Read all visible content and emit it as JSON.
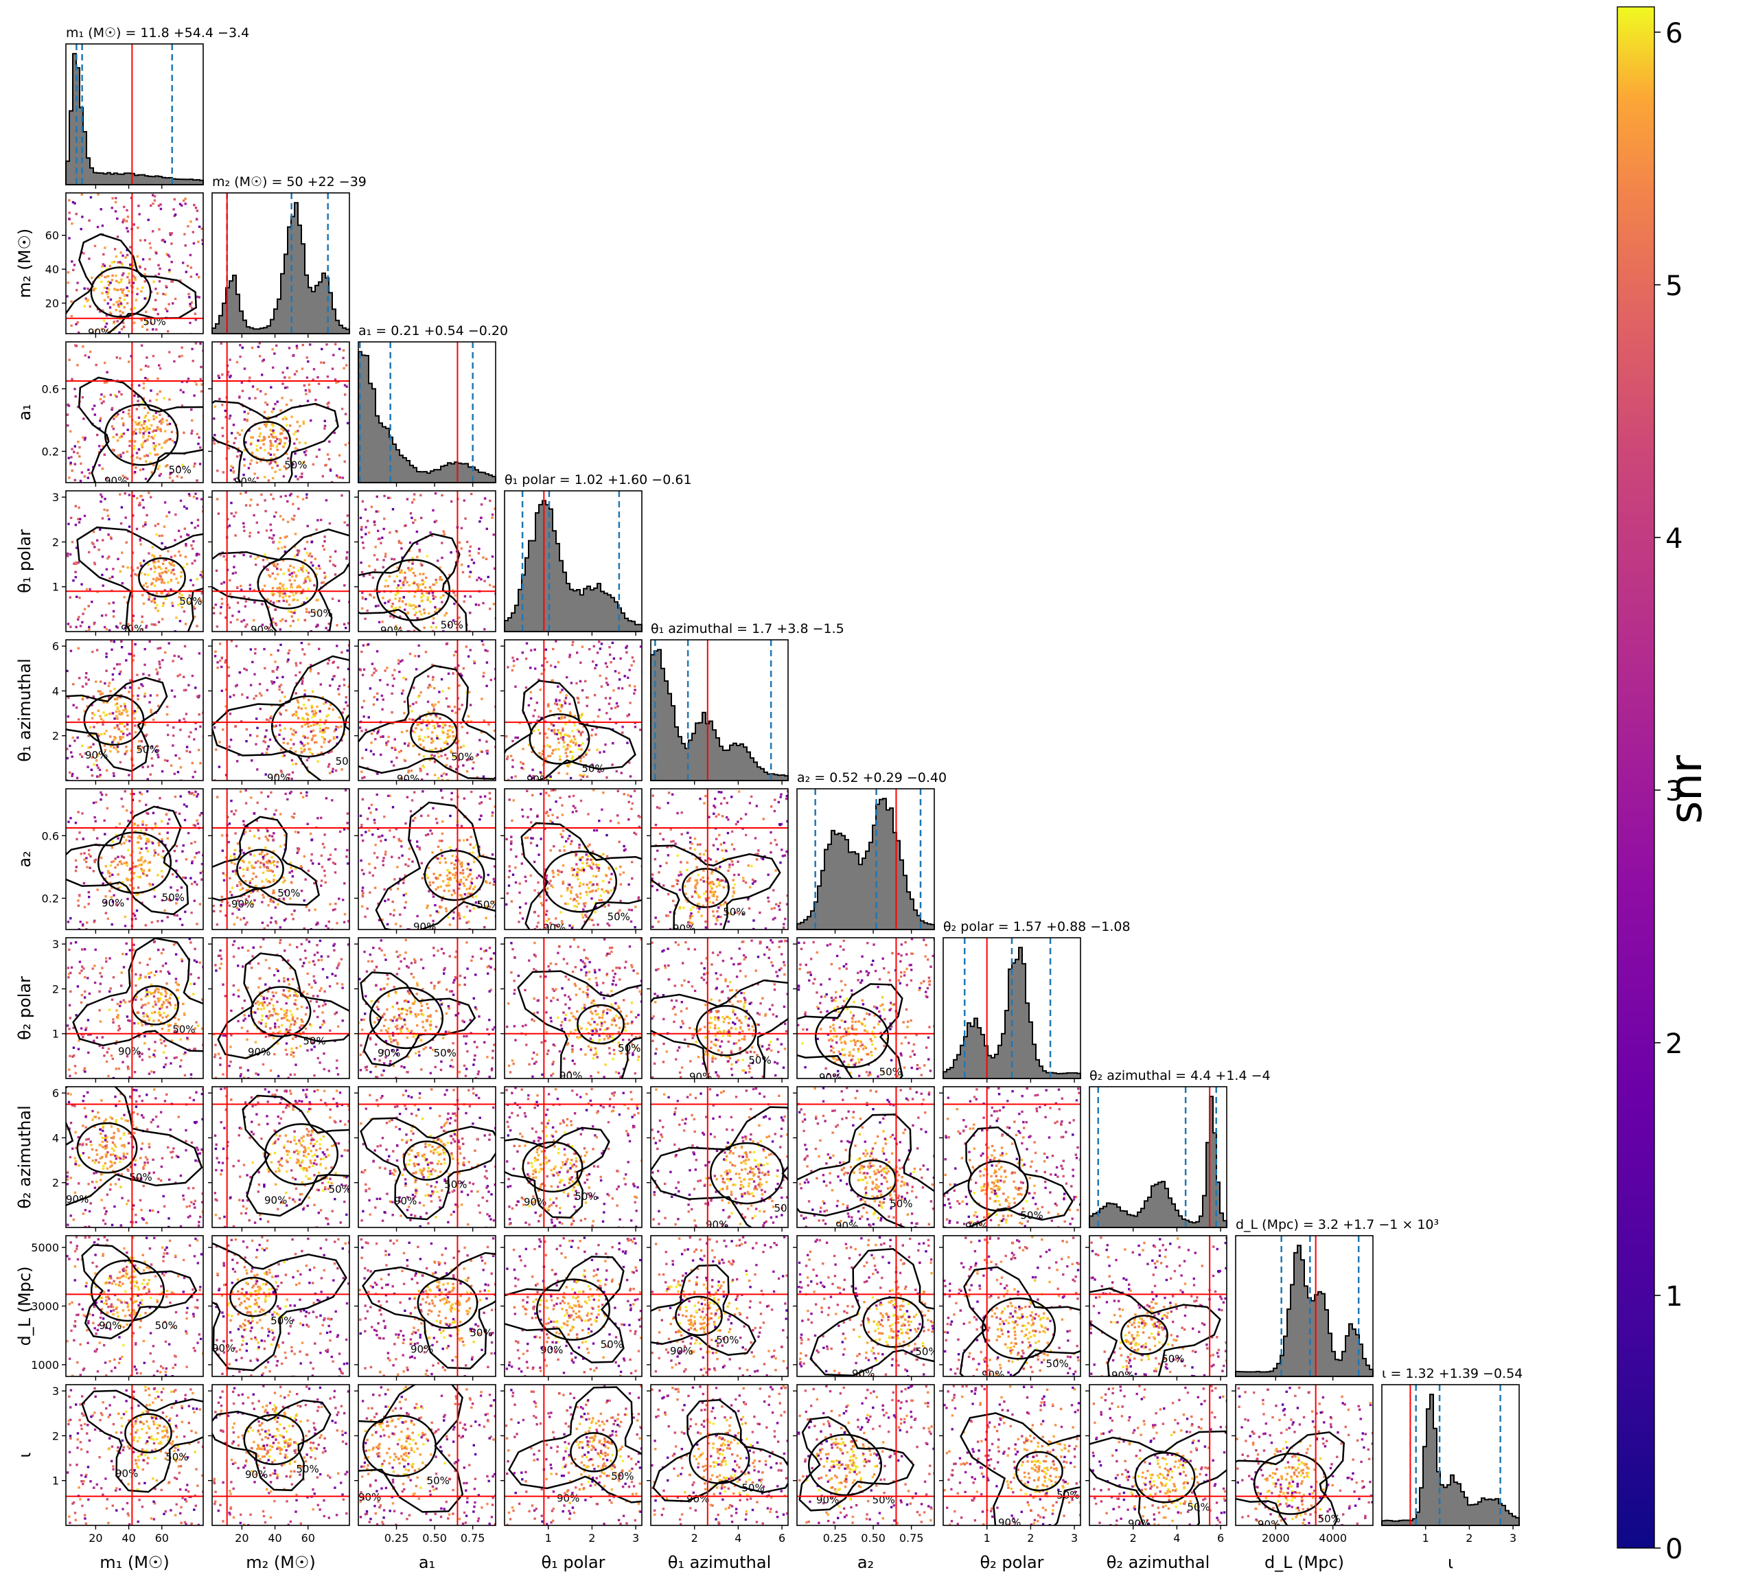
{
  "chart_data": {
    "type": "scatter",
    "subtype": "corner plot",
    "parameters": [
      {
        "key": "m1",
        "axis_label": "m₁ (M☉)",
        "title": "m₁ (M☉) = 11.8 +54.4 −3.4",
        "median": 11.8,
        "plus": 54.4,
        "minus": 3.4,
        "range": [
          2,
          85
        ],
        "ticks": [
          20,
          40,
          60
        ],
        "tick_labels": [
          "20",
          "40",
          "60"
        ],
        "truth": 42,
        "hist_peaks": [
          [
            7,
            1.0,
            2
          ],
          [
            11,
            0.6,
            3
          ],
          [
            30,
            0.08,
            25
          ]
        ]
      },
      {
        "key": "m2",
        "axis_label": "m₂ (M☉)",
        "title": "m₂ (M☉) = 50 +22 −39",
        "median": 50,
        "plus": 22,
        "minus": 39,
        "range": [
          2,
          85
        ],
        "ticks": [
          20,
          40,
          60
        ],
        "tick_labels": [
          "20",
          "40",
          "60"
        ],
        "truth": 11,
        "hist_peaks": [
          [
            14,
            0.45,
            4
          ],
          [
            52,
            1.0,
            6
          ],
          [
            70,
            0.5,
            4
          ]
        ]
      },
      {
        "key": "a1",
        "axis_label": "a₁",
        "title": "a₁ = 0.21 +0.54 −0.20",
        "median": 0.21,
        "plus": 0.54,
        "minus": 0.2,
        "range": [
          0,
          0.9
        ],
        "ticks": [
          0.25,
          0.5,
          0.75
        ],
        "tick_labels": [
          "0.25",
          "0.50",
          "0.75"
        ],
        "truth": 0.65,
        "hist_peaks": [
          [
            0.02,
            1.0,
            0.06
          ],
          [
            0.15,
            0.45,
            0.12
          ],
          [
            0.65,
            0.15,
            0.12
          ]
        ]
      },
      {
        "key": "th1p",
        "axis_label": "θ₁ polar",
        "title": "θ₁ polar = 1.02 +1.60 −0.61",
        "median": 1.02,
        "plus": 1.6,
        "minus": 0.61,
        "range": [
          0,
          3.14
        ],
        "ticks": [
          1,
          2,
          3
        ],
        "tick_labels": [
          "1",
          "2",
          "3"
        ],
        "truth": 0.9,
        "hist_peaks": [
          [
            0.9,
            1.0,
            0.35
          ],
          [
            2.1,
            0.35,
            0.4
          ]
        ]
      },
      {
        "key": "th1a",
        "axis_label": "θ₁ azimuthal",
        "title": "θ₁ azimuthal = 1.7 +3.8 −1.5",
        "median": 1.7,
        "plus": 3.8,
        "minus": 1.5,
        "range": [
          0,
          6.28
        ],
        "ticks": [
          2,
          4,
          6
        ],
        "tick_labels": [
          "2",
          "4",
          "6"
        ],
        "truth": 2.6,
        "hist_peaks": [
          [
            0.3,
            1.0,
            0.6
          ],
          [
            2.4,
            0.45,
            0.5
          ],
          [
            4,
            0.25,
            0.6
          ]
        ]
      },
      {
        "key": "a2",
        "axis_label": "a₂",
        "title": "a₂ = 0.52 +0.29 −0.40",
        "median": 0.52,
        "plus": 0.29,
        "minus": 0.4,
        "range": [
          0,
          0.9
        ],
        "ticks": [
          0.25,
          0.5,
          0.75
        ],
        "tick_labels": [
          "0.25",
          "0.50",
          "0.75"
        ],
        "truth": 0.65,
        "hist_peaks": [
          [
            0.25,
            0.85,
            0.08
          ],
          [
            0.6,
            1.0,
            0.09
          ],
          [
            0.45,
            0.45,
            0.1
          ]
        ]
      },
      {
        "key": "th2p",
        "axis_label": "θ₂ polar",
        "title": "θ₂ polar = 1.57 +0.88 −1.08",
        "median": 1.57,
        "plus": 0.88,
        "minus": 1.08,
        "range": [
          0,
          3.14
        ],
        "ticks": [
          1,
          2,
          3
        ],
        "tick_labels": [
          "1",
          "2",
          "3"
        ],
        "truth": 1.0,
        "hist_peaks": [
          [
            0.7,
            0.4,
            0.25
          ],
          [
            1.7,
            1.0,
            0.22
          ]
        ]
      },
      {
        "key": "th2a",
        "axis_label": "θ₂ azimuthal",
        "title": "θ₂ azimuthal = 4.4 +1.4 −4",
        "median": 4.4,
        "plus": 1.4,
        "minus": 4,
        "range": [
          0,
          6.28
        ],
        "ticks": [
          2,
          4,
          6
        ],
        "tick_labels": [
          "2",
          "4",
          "6"
        ],
        "truth": 5.5,
        "hist_peaks": [
          [
            5.6,
            1.0,
            0.2
          ],
          [
            3.2,
            0.35,
            0.5
          ],
          [
            1,
            0.15,
            0.6
          ]
        ]
      },
      {
        "key": "dl",
        "axis_label": "d_L (Mpc)",
        "title": "d_L (Mpc) = 3.2 +1.7 −1 × 10³",
        "median": 3200,
        "plus": 1700,
        "minus": 1000,
        "range": [
          600,
          5400
        ],
        "ticks": [
          2000,
          4000
        ],
        "tick_labels": [
          "2000",
          "4000"
        ],
        "truth": 3400,
        "hist_peaks": [
          [
            2800,
            1.0,
            300
          ],
          [
            3600,
            0.7,
            250
          ],
          [
            4700,
            0.4,
            250
          ]
        ]
      },
      {
        "key": "iota",
        "axis_label": "ι",
        "title": "ι = 1.32 +1.39 −0.54",
        "median": 1.32,
        "plus": 1.39,
        "minus": 0.54,
        "range": [
          0,
          3.14
        ],
        "ticks": [
          1,
          2,
          3
        ],
        "tick_labels": [
          "1",
          "2",
          "3"
        ],
        "truth": 0.65,
        "hist_peaks": [
          [
            1.1,
            1.0,
            0.12
          ],
          [
            1.6,
            0.35,
            0.25
          ],
          [
            2.5,
            0.2,
            0.3
          ]
        ]
      }
    ],
    "y_ticks": {
      "m2": {
        "values": [
          20,
          40,
          60
        ],
        "labels": [
          "20",
          "40",
          "60"
        ]
      },
      "a1": {
        "values": [
          0.2,
          0.6
        ],
        "labels": [
          "0.2",
          "0.6"
        ]
      },
      "th1p": {
        "values": [
          1,
          2,
          3
        ],
        "labels": [
          "1",
          "2",
          "3"
        ]
      },
      "th1a": {
        "values": [
          2,
          4,
          6
        ],
        "labels": [
          "2",
          "4",
          "6"
        ]
      },
      "a2": {
        "values": [
          0.2,
          0.6
        ],
        "labels": [
          "0.2",
          "0.6"
        ]
      },
      "th2p": {
        "values": [
          1,
          2,
          3
        ],
        "labels": [
          "1",
          "2",
          "3"
        ]
      },
      "th2a": {
        "values": [
          2,
          4,
          6
        ],
        "labels": [
          "2",
          "4",
          "6"
        ]
      },
      "dl": {
        "values": [
          1000,
          3000,
          5000
        ],
        "labels": [
          "1000",
          "3000",
          "5000"
        ]
      },
      "iota": {
        "values": [
          1,
          2,
          3
        ],
        "labels": [
          "1",
          "2",
          "3"
        ]
      }
    },
    "contour_labels": [
      "50%",
      "90%"
    ],
    "colorbar": {
      "label": "snr",
      "min": 0,
      "max": 6.1,
      "ticks": [
        0,
        1,
        2,
        3,
        4,
        5,
        6
      ],
      "tick_labels": [
        "0",
        "1",
        "2",
        "3",
        "4",
        "5",
        "6"
      ],
      "colormap": "plasma"
    },
    "colors": {
      "truth_line": "#ff0000",
      "quantile_line": "#1f77b4",
      "hist_fill": "#7a7a7a",
      "contour": "#000000"
    }
  }
}
